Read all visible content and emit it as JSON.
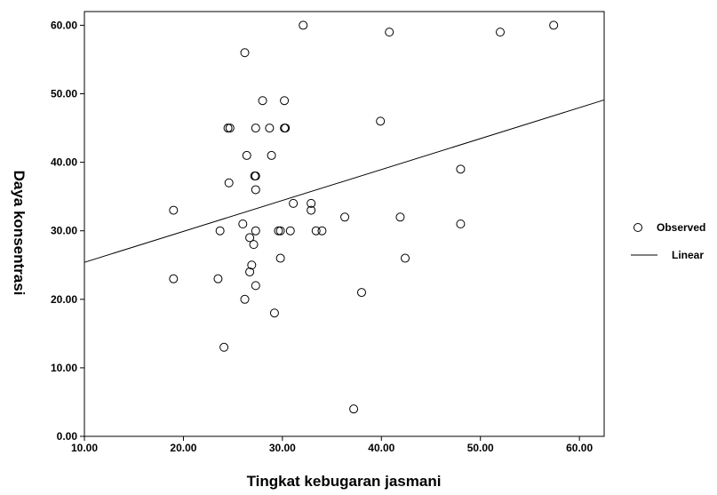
{
  "chart_data": {
    "type": "scatter",
    "title": "",
    "xlabel": "Tingkat kebugaran jasmani",
    "ylabel": "Daya konsentrasi",
    "xlim": [
      10,
      62.5
    ],
    "ylim": [
      0,
      62
    ],
    "xticks": [
      "10.00",
      "20.00",
      "30.00",
      "40.00",
      "50.00",
      "60.00"
    ],
    "yticks": [
      "0.00",
      "10.00",
      "20.00",
      "30.00",
      "40.00",
      "50.00",
      "60.00"
    ],
    "grid": false,
    "legend": {
      "position": "right",
      "entries": [
        "Observed",
        "Linear"
      ]
    },
    "series": [
      {
        "name": "Observed",
        "kind": "scatter",
        "marker": "open-circle",
        "points": [
          [
            19.0,
            33
          ],
          [
            19.0,
            23
          ],
          [
            23.5,
            23
          ],
          [
            23.7,
            30
          ],
          [
            24.1,
            13
          ],
          [
            24.5,
            45
          ],
          [
            24.7,
            45
          ],
          [
            24.6,
            37
          ],
          [
            26.0,
            31
          ],
          [
            26.2,
            56
          ],
          [
            26.2,
            20
          ],
          [
            26.4,
            41
          ],
          [
            26.7,
            24
          ],
          [
            26.7,
            29
          ],
          [
            26.9,
            25
          ],
          [
            27.1,
            28
          ],
          [
            27.2,
            38
          ],
          [
            27.3,
            45
          ],
          [
            27.3,
            38
          ],
          [
            27.3,
            36
          ],
          [
            27.3,
            30
          ],
          [
            27.3,
            22
          ],
          [
            28.0,
            49
          ],
          [
            28.7,
            45
          ],
          [
            28.9,
            41
          ],
          [
            29.2,
            18
          ],
          [
            29.6,
            30
          ],
          [
            29.8,
            30
          ],
          [
            29.8,
            26
          ],
          [
            30.2,
            49
          ],
          [
            30.2,
            45
          ],
          [
            30.3,
            45
          ],
          [
            30.8,
            30
          ],
          [
            31.1,
            34
          ],
          [
            32.1,
            60
          ],
          [
            32.9,
            34
          ],
          [
            32.9,
            33
          ],
          [
            33.4,
            30
          ],
          [
            34.0,
            30
          ],
          [
            36.3,
            32
          ],
          [
            37.2,
            4
          ],
          [
            38.0,
            21
          ],
          [
            39.9,
            46
          ],
          [
            40.8,
            59
          ],
          [
            41.9,
            32
          ],
          [
            42.4,
            26
          ],
          [
            48.0,
            39
          ],
          [
            48.0,
            31
          ],
          [
            52.0,
            59
          ],
          [
            57.4,
            60
          ]
        ]
      },
      {
        "name": "Linear",
        "kind": "line",
        "points": [
          [
            10,
            25.4
          ],
          [
            62.5,
            49.1
          ]
        ]
      }
    ]
  }
}
